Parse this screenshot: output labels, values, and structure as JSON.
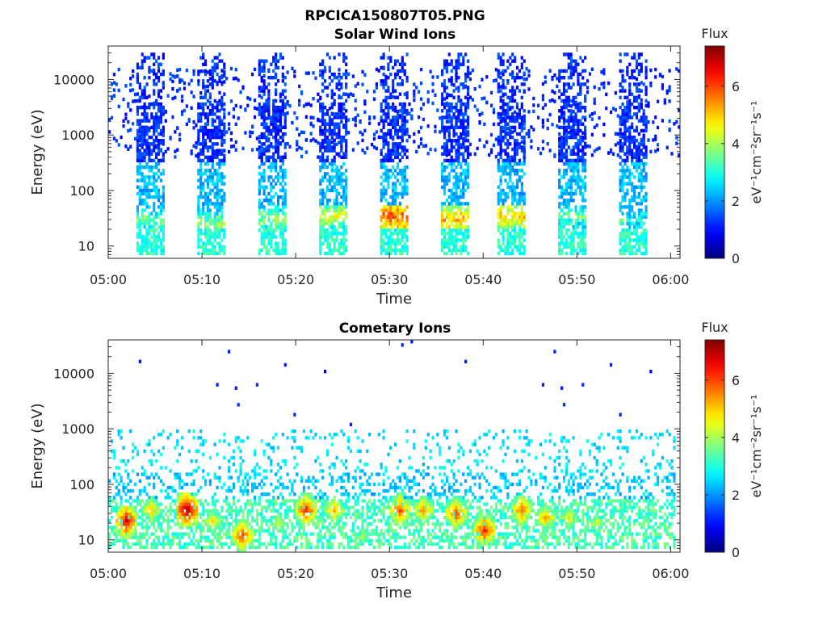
{
  "figure": {
    "title": "RPCICA150807T05.PNG"
  },
  "chart_data": [
    {
      "type": "heatmap",
      "title": "Solar Wind Ions",
      "xlabel": "Time",
      "ylabel": "Energy (eV)",
      "x_ticks": [
        "05:00",
        "05:10",
        "05:20",
        "05:30",
        "05:40",
        "05:50",
        "06:00"
      ],
      "x_range_minutes": [
        0,
        61
      ],
      "y_ticks": [
        "10",
        "100",
        "1000",
        "10000"
      ],
      "y_tick_values": [
        10,
        100,
        1000,
        10000
      ],
      "y_scale": "log",
      "y_range": [
        6,
        40000
      ],
      "colorbar": {
        "title": "Flux",
        "label": "eV⁻¹cm⁻²sr⁻¹s⁻¹",
        "ticks": [
          "0",
          "2",
          "4",
          "6"
        ],
        "tick_values": [
          0,
          2,
          4,
          6
        ],
        "range": [
          0,
          7.4
        ],
        "colormap": "jet"
      },
      "bursts": [
        {
          "start_min": 3.0,
          "end_min": 6.0,
          "peak_energy_eV": 30,
          "peak_flux": 4.2
        },
        {
          "start_min": 9.5,
          "end_min": 12.5,
          "peak_energy_eV": 25,
          "peak_flux": 4.6
        },
        {
          "start_min": 16.0,
          "end_min": 19.0,
          "peak_energy_eV": 30,
          "peak_flux": 4.5
        },
        {
          "start_min": 22.5,
          "end_min": 25.5,
          "peak_energy_eV": 35,
          "peak_flux": 5.0
        },
        {
          "start_min": 29.0,
          "end_min": 32.0,
          "peak_energy_eV": 35,
          "peak_flux": 6.5
        },
        {
          "start_min": 35.5,
          "end_min": 38.5,
          "peak_energy_eV": 30,
          "peak_flux": 5.8
        },
        {
          "start_min": 41.5,
          "end_min": 44.5,
          "peak_energy_eV": 35,
          "peak_flux": 5.6
        },
        {
          "start_min": 48.0,
          "end_min": 51.0,
          "peak_energy_eV": 35,
          "peak_flux": 4.3
        },
        {
          "start_min": 54.5,
          "end_min": 57.5,
          "peak_energy_eV": 30,
          "peak_flux": 3.8
        }
      ]
    },
    {
      "type": "heatmap",
      "title": "Cometary Ions",
      "xlabel": "Time",
      "ylabel": "Energy (eV)",
      "x_ticks": [
        "05:00",
        "05:10",
        "05:20",
        "05:30",
        "05:40",
        "05:50",
        "06:00"
      ],
      "x_range_minutes": [
        0,
        61
      ],
      "y_ticks": [
        "10",
        "100",
        "1000",
        "10000"
      ],
      "y_tick_values": [
        10,
        100,
        1000,
        10000
      ],
      "y_scale": "log",
      "y_range": [
        6,
        40000
      ],
      "colorbar": {
        "title": "Flux",
        "label": "eV⁻¹cm⁻²sr⁻¹s⁻¹",
        "ticks": [
          "0",
          "2",
          "4",
          "6"
        ],
        "tick_values": [
          0,
          2,
          4,
          6
        ],
        "range": [
          0,
          7.4
        ],
        "colormap": "jet"
      },
      "hotspots": [
        {
          "center_min": 1.8,
          "energy_eV": 22,
          "peak_flux": 7.0
        },
        {
          "center_min": 4.5,
          "energy_eV": 35,
          "peak_flux": 5.5
        },
        {
          "center_min": 8.3,
          "energy_eV": 35,
          "peak_flux": 7.3
        },
        {
          "center_min": 11.0,
          "energy_eV": 22,
          "peak_flux": 5.2
        },
        {
          "center_min": 14.2,
          "energy_eV": 12,
          "peak_flux": 6.4
        },
        {
          "center_min": 18.0,
          "energy_eV": 20,
          "peak_flux": 4.8
        },
        {
          "center_min": 21.0,
          "energy_eV": 35,
          "peak_flux": 6.5
        },
        {
          "center_min": 24.0,
          "energy_eV": 35,
          "peak_flux": 5.6
        },
        {
          "center_min": 27.0,
          "energy_eV": 12,
          "peak_flux": 4.6
        },
        {
          "center_min": 31.0,
          "energy_eV": 35,
          "peak_flux": 6.3
        },
        {
          "center_min": 33.5,
          "energy_eV": 35,
          "peak_flux": 5.8
        },
        {
          "center_min": 37.0,
          "energy_eV": 30,
          "peak_flux": 6.3
        },
        {
          "center_min": 40.0,
          "energy_eV": 15,
          "peak_flux": 6.6
        },
        {
          "center_min": 44.0,
          "energy_eV": 35,
          "peak_flux": 6.2
        },
        {
          "center_min": 46.5,
          "energy_eV": 25,
          "peak_flux": 5.7
        },
        {
          "center_min": 49.0,
          "energy_eV": 25,
          "peak_flux": 5.2
        },
        {
          "center_min": 52.0,
          "energy_eV": 20,
          "peak_flux": 4.9
        }
      ]
    }
  ]
}
